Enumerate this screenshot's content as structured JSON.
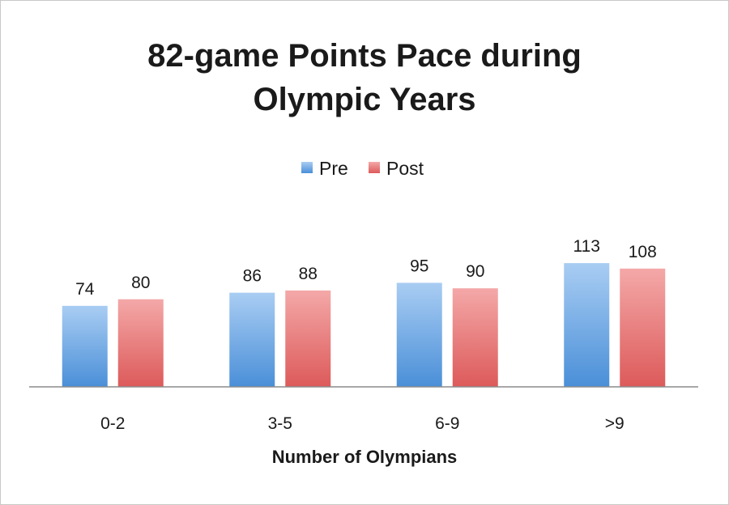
{
  "chart_data": {
    "type": "bar",
    "title_lines": [
      "82-game Points Pace during",
      "Olympic Years"
    ],
    "xlabel": "Number of Olympians",
    "ylabel": "",
    "categories": [
      "0-2",
      "3-5",
      "6-9",
      ">9"
    ],
    "series": [
      {
        "name": "Pre",
        "values": [
          74,
          86,
          95,
          113
        ],
        "color": "#5b9bd5"
      },
      {
        "name": "Post",
        "values": [
          80,
          88,
          90,
          108
        ],
        "color": "#e06666"
      }
    ],
    "ylim": [
      0,
      113
    ],
    "grid": false,
    "legend_position": "top-center",
    "data_labels": true
  }
}
